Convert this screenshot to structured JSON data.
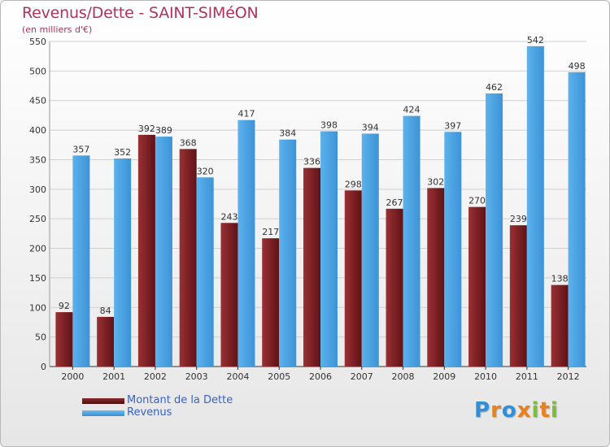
{
  "title": "Revenus/Dette - SAINT-SIMéON",
  "subtitle": "(en milliers d'€)",
  "logo": {
    "letters": [
      "P",
      "r",
      "o",
      "x",
      "i",
      "t",
      "i"
    ],
    "colors": [
      "#2f8fd8",
      "#e8801e",
      "#2f8fd8",
      "#e8801e",
      "#7cbe3a",
      "#e8801e",
      "#7cbe3a"
    ]
  },
  "chart_data": {
    "type": "bar",
    "categories": [
      "2000",
      "2001",
      "2002",
      "2003",
      "2004",
      "2005",
      "2006",
      "2007",
      "2008",
      "2009",
      "2010",
      "2011",
      "2012"
    ],
    "series": [
      {
        "name": "Montant de la Dette",
        "values": [
          92,
          84,
          392,
          368,
          243,
          217,
          336,
          298,
          267,
          302,
          270,
          239,
          138
        ],
        "color": "#7a1e22"
      },
      {
        "name": "Revenus",
        "values": [
          357,
          352,
          389,
          320,
          417,
          384,
          398,
          394,
          424,
          397,
          462,
          542,
          498
        ],
        "color": "#4aa3e2"
      }
    ],
    "ylim": [
      0,
      550
    ],
    "yticks": [
      0,
      50,
      100,
      150,
      200,
      250,
      300,
      350,
      400,
      450,
      500,
      550
    ],
    "grid": true,
    "legend_position": "bottom-left"
  }
}
